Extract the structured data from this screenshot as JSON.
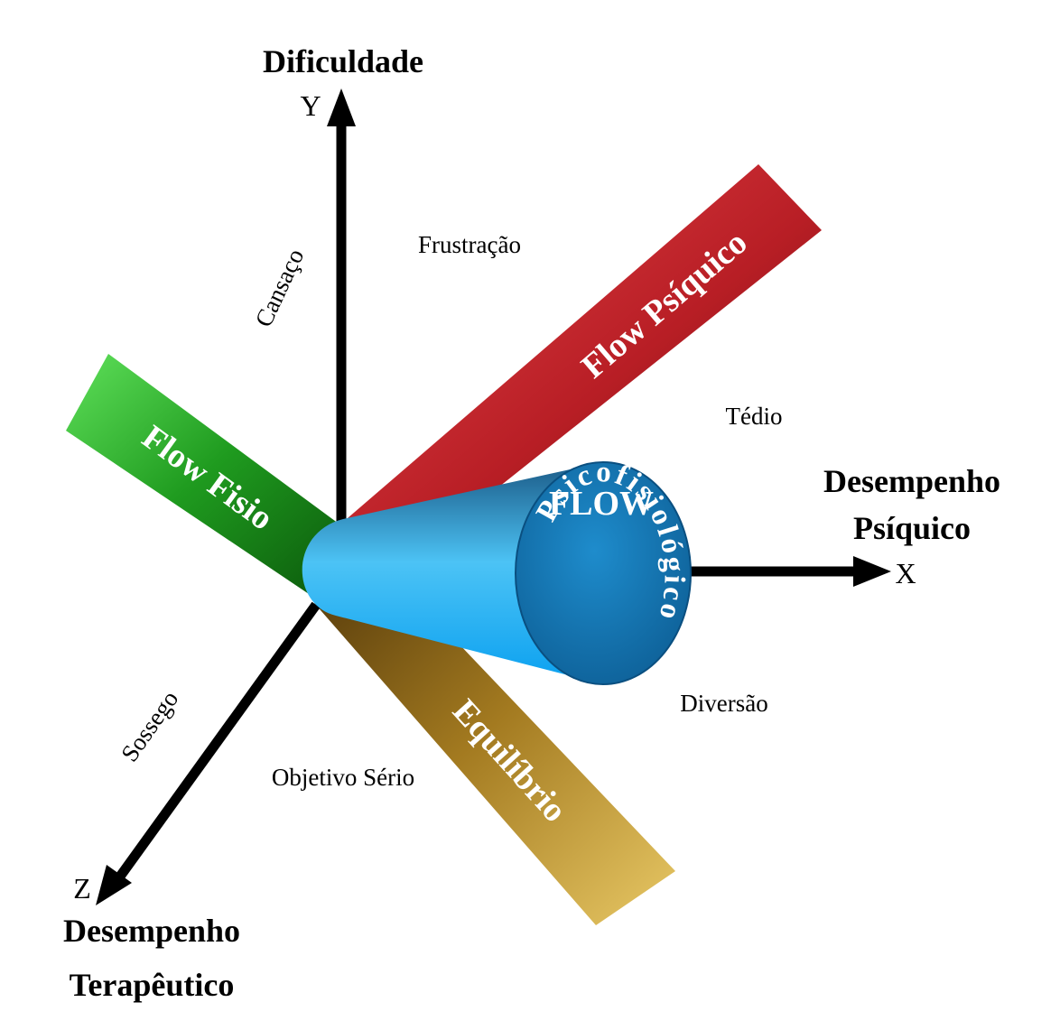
{
  "axes": {
    "y": {
      "letter": "Y",
      "title": "Dificuldade"
    },
    "x": {
      "letter": "X",
      "title_line1": "Desempenho",
      "title_line2": "Psíquico"
    },
    "z": {
      "letter": "Z",
      "title_line1": "Desempenho",
      "title_line2": "Terapêutico"
    }
  },
  "zones": {
    "cansaco": "Cansaço",
    "frustracao": "Frustração",
    "tedio": "Tédio",
    "diversao": "Diversão",
    "sossego": "Sossego",
    "objetivo": "Objetivo Sério"
  },
  "bands": {
    "psiquico": {
      "label": "Flow Psíquico",
      "color": "#c0282d"
    },
    "fisio": {
      "label": "Flow Fisio",
      "color": "#1f9b1f"
    },
    "equilibrio": {
      "label": "Equilíbrio",
      "color": "#b48a25"
    }
  },
  "cone": {
    "title": "FLOW",
    "subtitle": "Psicofisiológico",
    "color": "#1aa3e0"
  }
}
